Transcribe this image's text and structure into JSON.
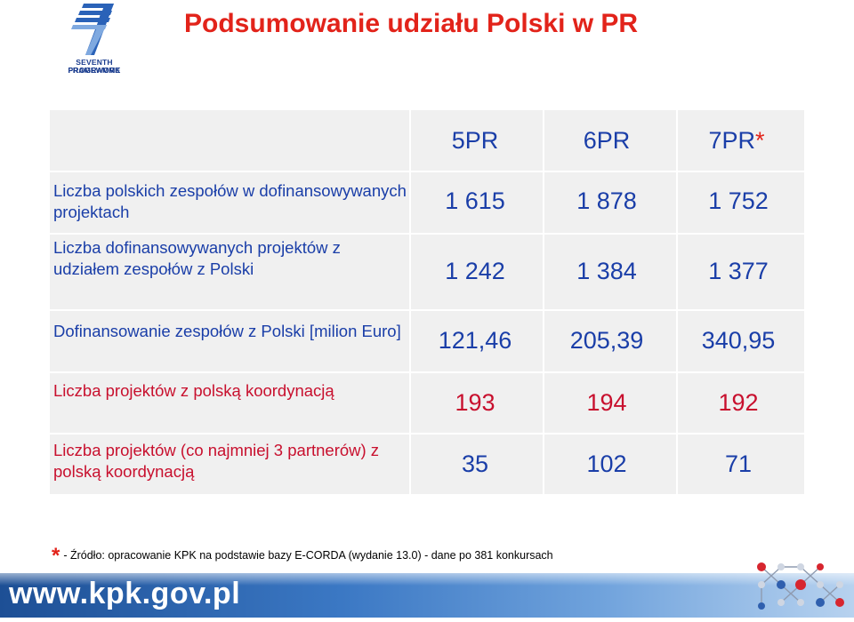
{
  "logo": {
    "line1": "SEVENTH FRAMEWORK",
    "line2": "PROGRAMME"
  },
  "title": "Podsumowanie udziału Polski w PR",
  "table": {
    "headers": [
      "5PR",
      "6PR",
      "7PR"
    ],
    "header_asterisk": "*",
    "rows": [
      {
        "label": "Liczba polskich zespołów w dofinansowywanych projektach",
        "values": [
          "1 615",
          "1 878",
          "1 752"
        ]
      },
      {
        "label": "Liczba dofinansowywanych projektów z udziałem zespołów z Polski",
        "values": [
          "1 242",
          "1 384",
          "1 377"
        ]
      },
      {
        "label": "Dofinansowanie zespołów z Polski [milion Euro]",
        "values": [
          "121,46",
          "205,39",
          "340,95"
        ]
      },
      {
        "label": "Liczba projektów z polską koordynacją",
        "values": [
          "193",
          "194",
          "192"
        ]
      },
      {
        "label": "Liczba projektów (co najmniej 3 partnerów) z polską koordynacją",
        "values": [
          "35",
          "102",
          "71"
        ]
      }
    ]
  },
  "footnote": {
    "asterisk": "*",
    "text": "- Źródło: opracowanie KPK na podstawie bazy E-CORDA (wydanie 13.0) - dane po 381 konkursach"
  },
  "footer": {
    "url": "www.kpk.gov.pl"
  },
  "colors": {
    "title": "#e2231a",
    "blue_text": "#1a3ea8",
    "red_text": "#c8102e",
    "panel": "#f0f0f0",
    "footer_bar": "#2f66b3"
  }
}
